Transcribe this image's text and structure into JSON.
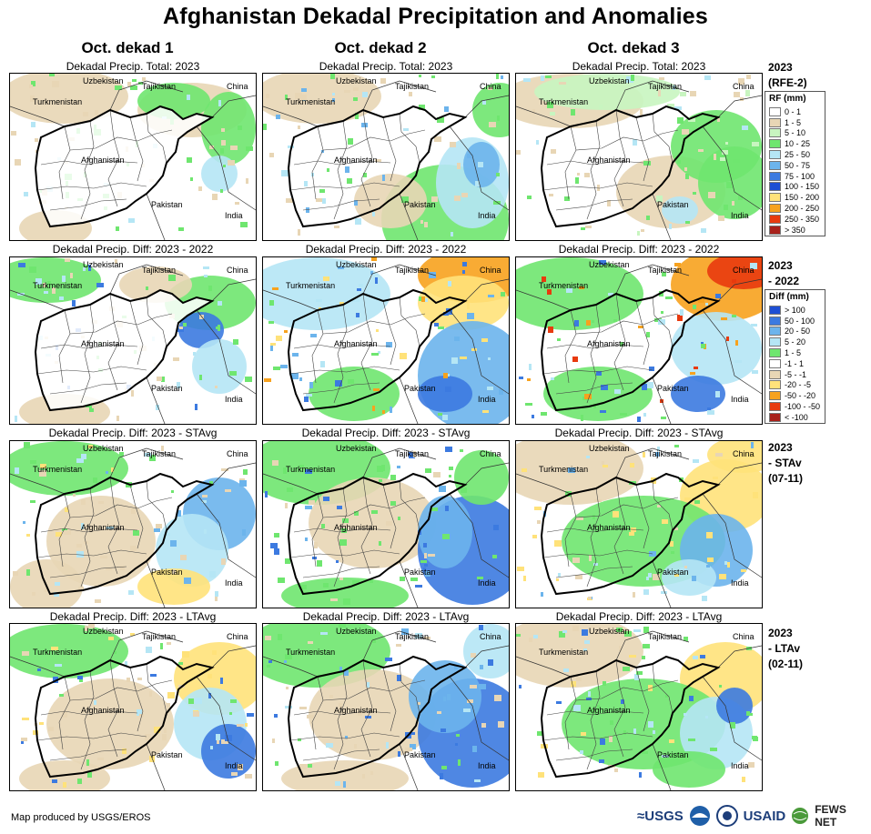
{
  "title": "Afghanistan Dekadal Precipitation and Anomalies",
  "columns": [
    "Oct. dekad 1",
    "Oct. dekad 2",
    "Oct. dekad 3"
  ],
  "rows": [
    {
      "panel_title": "Dekadal Precip. Total: 2023",
      "label_lines": [
        "2023",
        "(RFE-2)"
      ],
      "legend": "rf"
    },
    {
      "panel_title": "Dekadal Precip. Diff: 2023 - 2022",
      "label_lines": [
        "2023",
        "- 2022"
      ],
      "legend": "diff"
    },
    {
      "panel_title": "Dekadal Precip. Diff: 2023 - STAvg",
      "label_lines": [
        "2023",
        "- STAv",
        "(07-11)"
      ],
      "legend": null
    },
    {
      "panel_title": "Dekadal Precip. Diff: 2023 - LTAvg",
      "label_lines": [
        "2023",
        "- LTAv",
        "(02-11)"
      ],
      "legend": null
    }
  ],
  "map_labels": {
    "uzbekistan": "Uzbekistan",
    "tajikistan": "Tajikistan",
    "china": "China",
    "turkmenistan": "Turkmenistan",
    "afghanistan": "Afghanistan",
    "pakistan": "Pakistan",
    "india": "India"
  },
  "legend_rf": {
    "title": "RF (mm)",
    "items": [
      {
        "label": "0 - 1",
        "color": "#ffffff"
      },
      {
        "label": "1 - 5",
        "color": "#e8d6b5"
      },
      {
        "label": "5 - 10",
        "color": "#c8f5c0"
      },
      {
        "label": "10 - 25",
        "color": "#6fe66f"
      },
      {
        "label": "25 - 50",
        "color": "#b5e6f5"
      },
      {
        "label": "50 - 75",
        "color": "#6cb4ec"
      },
      {
        "label": "75 - 100",
        "color": "#3c7ae0"
      },
      {
        "label": "100 - 150",
        "color": "#1e4fd4"
      },
      {
        "label": "150 - 200",
        "color": "#ffe27a"
      },
      {
        "label": "200 - 250",
        "color": "#f7a21e"
      },
      {
        "label": "250 - 350",
        "color": "#e83a0e"
      },
      {
        "label": "> 350",
        "color": "#a8201a"
      }
    ]
  },
  "legend_diff": {
    "title": "Diff (mm)",
    "items": [
      {
        "label": "> 100",
        "color": "#1e4fd4"
      },
      {
        "label": "50 - 100",
        "color": "#3c7ae0"
      },
      {
        "label": "20 - 50",
        "color": "#6cb4ec"
      },
      {
        "label": "5 - 20",
        "color": "#b5e6f5"
      },
      {
        "label": "1 - 5",
        "color": "#6fe66f"
      },
      {
        "label": "-1 - 1",
        "color": "#ffffff"
      },
      {
        "label": "-5 - -1",
        "color": "#e8d6b5"
      },
      {
        "label": "-20 - -5",
        "color": "#ffe27a"
      },
      {
        "label": "-50 - -20",
        "color": "#f7a21e"
      },
      {
        "label": "-100 - -50",
        "color": "#e83a0e"
      },
      {
        "label": "< -100",
        "color": "#a8201a"
      }
    ]
  },
  "credit": "Map produced by USGS/EROS",
  "logos": {
    "usgs": "≈USGS",
    "usaid": "USAID",
    "fews": "FEWS NET"
  }
}
